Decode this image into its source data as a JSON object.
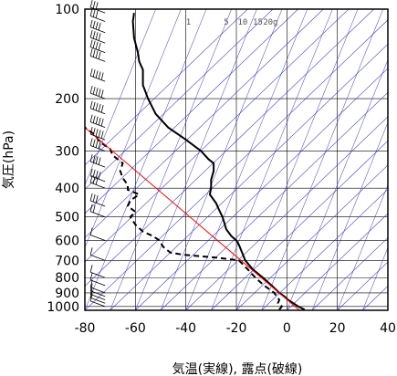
{
  "chart_data": {
    "type": "line",
    "title": "",
    "xlabel": "気温(実線), 露点(破線)",
    "ylabel": "気圧(hPa)",
    "xlim": [
      -80,
      40
    ],
    "ylim": [
      1030,
      100
    ],
    "y_scale": "log",
    "x_ticks": [
      -80,
      -60,
      -40,
      -20,
      0,
      20,
      40
    ],
    "x_tick_labels": [
      "−80",
      "−60",
      "−40",
      "−20",
      "0",
      "20",
      "40"
    ],
    "y_ticks": [
      100,
      200,
      300,
      400,
      500,
      600,
      700,
      800,
      900,
      1000
    ],
    "mixing_ratio_labels": [
      "1",
      "5",
      "10",
      "15",
      "20g"
    ],
    "grid": true,
    "series": [
      {
        "role": "temperature",
        "style": "solid",
        "color": "#000000",
        "points": [
          {
            "p": 1025,
            "t": 7
          },
          {
            "p": 1000,
            "t": 4.5
          },
          {
            "p": 975,
            "t": 2.5
          },
          {
            "p": 950,
            "t": 0.5
          },
          {
            "p": 925,
            "t": -1
          },
          {
            "p": 900,
            "t": -3
          },
          {
            "p": 850,
            "t": -6
          },
          {
            "p": 800,
            "t": -9.5
          },
          {
            "p": 750,
            "t": -13.5
          },
          {
            "p": 700,
            "t": -16.5
          },
          {
            "p": 650,
            "t": -18
          },
          {
            "p": 620,
            "t": -19
          },
          {
            "p": 600,
            "t": -20
          },
          {
            "p": 580,
            "t": -22
          },
          {
            "p": 550,
            "t": -24
          },
          {
            "p": 500,
            "t": -25.5
          },
          {
            "p": 470,
            "t": -27
          },
          {
            "p": 450,
            "t": -28
          },
          {
            "p": 420,
            "t": -30.5
          },
          {
            "p": 400,
            "t": -30
          },
          {
            "p": 375,
            "t": -30
          },
          {
            "p": 350,
            "t": -29
          },
          {
            "p": 330,
            "t": -29
          },
          {
            "p": 320,
            "t": -31
          },
          {
            "p": 300,
            "t": -34
          },
          {
            "p": 275,
            "t": -40
          },
          {
            "p": 250,
            "t": -47
          },
          {
            "p": 225,
            "t": -52
          },
          {
            "p": 200,
            "t": -55
          },
          {
            "p": 180,
            "t": -57
          },
          {
            "p": 160,
            "t": -57
          },
          {
            "p": 150,
            "t": -58.5
          },
          {
            "p": 140,
            "t": -59
          },
          {
            "p": 125,
            "t": -60.5
          },
          {
            "p": 110,
            "t": -61
          },
          {
            "p": 103,
            "t": -60.5
          }
        ]
      },
      {
        "role": "dewpoint",
        "style": "dashed",
        "color": "#000000",
        "points": [
          {
            "p": 1025,
            "t": -3
          },
          {
            "p": 1000,
            "t": -2
          },
          {
            "p": 975,
            "t": -3.5
          },
          {
            "p": 950,
            "t": -3
          },
          {
            "p": 925,
            "t": -4
          },
          {
            "p": 900,
            "t": -5
          },
          {
            "p": 850,
            "t": -9
          },
          {
            "p": 800,
            "t": -12.5
          },
          {
            "p": 750,
            "t": -15.5
          },
          {
            "p": 700,
            "t": -19
          },
          {
            "p": 685,
            "t": -28
          },
          {
            "p": 670,
            "t": -41
          },
          {
            "p": 660,
            "t": -46
          },
          {
            "p": 650,
            "t": -47
          },
          {
            "p": 630,
            "t": -49
          },
          {
            "p": 600,
            "t": -50.5
          },
          {
            "p": 580,
            "t": -53
          },
          {
            "p": 560,
            "t": -57
          },
          {
            "p": 530,
            "t": -60
          },
          {
            "p": 500,
            "t": -62
          },
          {
            "p": 480,
            "t": -60
          },
          {
            "p": 460,
            "t": -63
          },
          {
            "p": 440,
            "t": -62
          },
          {
            "p": 420,
            "t": -58.5
          },
          {
            "p": 405,
            "t": -63
          },
          {
            "p": 390,
            "t": -63
          },
          {
            "p": 370,
            "t": -65
          },
          {
            "p": 350,
            "t": -66
          },
          {
            "p": 330,
            "t": -65
          },
          {
            "p": 310,
            "t": -69
          },
          {
            "p": 295,
            "t": -70
          },
          {
            "p": 280,
            "t": -74
          },
          {
            "p": 265,
            "t": -76
          },
          {
            "p": 250,
            "t": -80
          }
        ]
      },
      {
        "role": "reference",
        "style": "solid",
        "color": "#ff0000",
        "points": [
          {
            "p": 1030,
            "t": 5
          },
          {
            "p": 250,
            "t": -80
          }
        ]
      }
    ],
    "wind_barbs": {
      "x_value": -72,
      "levels": [
        1000,
        975,
        950,
        925,
        900,
        850,
        800,
        700,
        600,
        500,
        460,
        400,
        380,
        340,
        300,
        275,
        250,
        225,
        200,
        175,
        150,
        140,
        130,
        120,
        110,
        103
      ],
      "speed_kt": [
        5,
        5,
        10,
        10,
        10,
        5,
        5,
        5,
        10,
        20,
        25,
        30,
        35,
        40,
        40,
        45,
        50,
        50,
        50,
        45,
        40,
        40,
        40,
        35,
        30,
        30
      ]
    }
  },
  "colors": {
    "grid": "#000000",
    "isotherm_blue": "#3333cc",
    "curve": "#000000",
    "reference": "#ff0000",
    "frame": "#000000"
  }
}
